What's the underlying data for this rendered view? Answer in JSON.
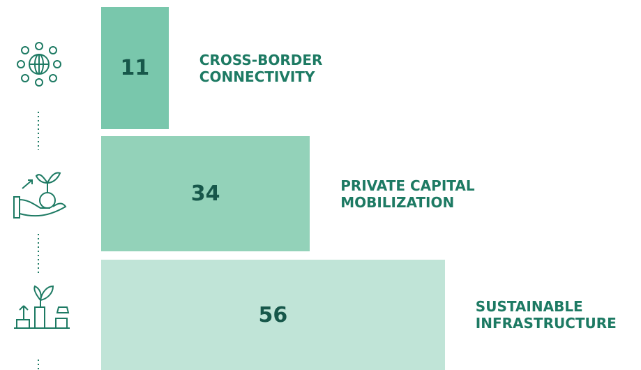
{
  "chart_data": {
    "type": "bar",
    "categories": [
      "CROSS-BORDER CONNECTIVITY",
      "PRIVATE CAPITAL MOBILIZATION",
      "SUSTAINABLE INFRASTRUCTURE"
    ],
    "values": [
      11,
      34,
      56
    ],
    "colors": [
      "#79c7ac",
      "#93d2b9",
      "#c0e4d7"
    ]
  }
}
